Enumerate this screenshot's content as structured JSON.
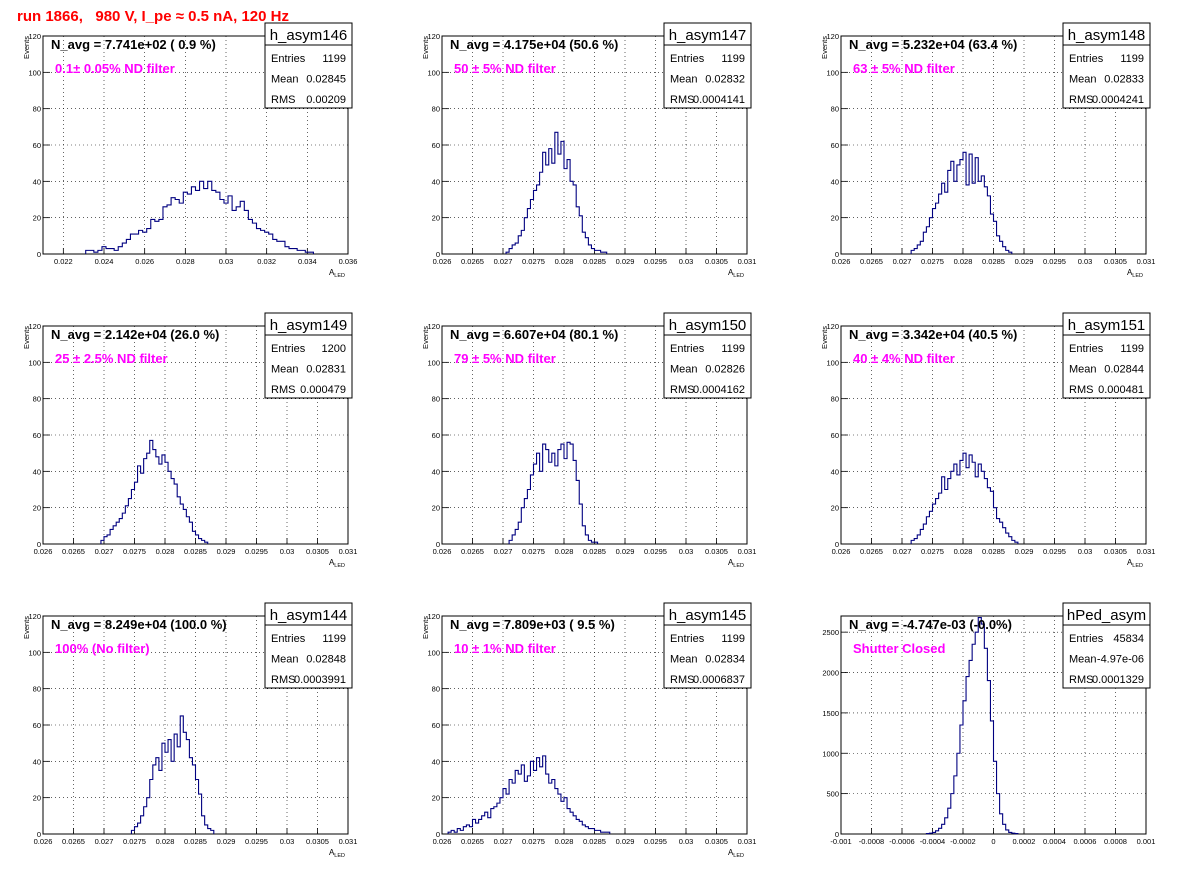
{
  "page": {
    "run_title": "run 1866,   980 V, I_pe ≈ 0.5 nA, 120 Hz"
  },
  "colors": {
    "histogram_line": "#000080",
    "annotation": "#ff00ff",
    "title": "#ff0000",
    "frame": "#000000",
    "grid": "#000000"
  },
  "chart_data": [
    {
      "type": "histogram",
      "name": "h_asym146",
      "navg": "N_avg = 7.741e+02 ( 0.9 %)",
      "annotation": "0.1± 0.05% ND filter",
      "stats": {
        "Entries": "1199",
        "Mean": "0.02845",
        "RMS": "0.00209"
      },
      "xlabel": "A_LED",
      "ylabel": "Events",
      "xlim": [
        0.021,
        0.036
      ],
      "ylim": [
        0,
        120
      ],
      "xticks": [
        {
          "v": 0.022,
          "l": "0.022"
        },
        {
          "v": 0.024,
          "l": "0.024"
        },
        {
          "v": 0.026,
          "l": "0.026"
        },
        {
          "v": 0.028,
          "l": "0.028"
        },
        {
          "v": 0.03,
          "l": "0.03"
        },
        {
          "v": 0.032,
          "l": "0.032"
        },
        {
          "v": 0.034,
          "l": "0.034"
        },
        {
          "v": 0.036,
          "l": "0.036"
        }
      ],
      "yticks": [
        0,
        20,
        40,
        60,
        80,
        100,
        120
      ],
      "bin_start": 0.0231,
      "bin_width": 0.0002,
      "counts": [
        2,
        2,
        1,
        2,
        4,
        3,
        3,
        2,
        4,
        6,
        8,
        11,
        11,
        13,
        12,
        14,
        19,
        18,
        19,
        26,
        27,
        31,
        30,
        28,
        34,
        33,
        37,
        35,
        40,
        36,
        40,
        35,
        34,
        30,
        28,
        32,
        24,
        26,
        29,
        24,
        19,
        17,
        14,
        13,
        12,
        11,
        8,
        7,
        7,
        4,
        3,
        3,
        2,
        2,
        1,
        1
      ]
    },
    {
      "type": "histogram",
      "name": "h_asym147",
      "navg": "N_avg = 4.175e+04 (50.6 %)",
      "annotation": "50 ± 5% ND filter",
      "stats": {
        "Entries": "1199",
        "Mean": "0.02832",
        "RMS": "0.0004141"
      },
      "xlabel": "A_LED",
      "ylabel": "Events",
      "xlim": [
        0.026,
        0.031
      ],
      "ylim": [
        0,
        120
      ],
      "xticks": [
        {
          "v": 0.026,
          "l": "0.026"
        },
        {
          "v": 0.0265,
          "l": "0.0265"
        },
        {
          "v": 0.027,
          "l": "0.027"
        },
        {
          "v": 0.0275,
          "l": "0.0275"
        },
        {
          "v": 0.028,
          "l": "0.028"
        },
        {
          "v": 0.0285,
          "l": "0.0285"
        },
        {
          "v": 0.029,
          "l": "0.029"
        },
        {
          "v": 0.0295,
          "l": "0.0295"
        },
        {
          "v": 0.03,
          "l": "0.03"
        },
        {
          "v": 0.0305,
          "l": "0.0305"
        },
        {
          "v": 0.031,
          "l": "0.031"
        }
      ],
      "yticks": [
        0,
        20,
        40,
        60,
        80,
        100,
        120
      ],
      "bin_start": 0.02705,
      "bin_width": 5e-05,
      "counts": [
        1,
        3,
        5,
        6,
        10,
        13,
        20,
        25,
        30,
        35,
        38,
        45,
        56,
        49,
        58,
        50,
        67,
        55,
        62,
        47,
        52,
        40,
        38,
        26,
        21,
        12,
        9,
        5,
        3,
        2,
        2,
        1,
        1
      ]
    },
    {
      "type": "histogram",
      "name": "h_asym148",
      "navg": "N_avg = 5.232e+04 (63.4 %)",
      "annotation": "63 ± 5% ND filter",
      "stats": {
        "Entries": "1199",
        "Mean": "0.02833",
        "RMS": "0.0004241"
      },
      "xlabel": "A_LED",
      "ylabel": "Events",
      "xlim": [
        0.026,
        0.031
      ],
      "ylim": [
        0,
        120
      ],
      "xticks": [
        {
          "v": 0.026,
          "l": "0.026"
        },
        {
          "v": 0.0265,
          "l": "0.0265"
        },
        {
          "v": 0.027,
          "l": "0.027"
        },
        {
          "v": 0.0275,
          "l": "0.0275"
        },
        {
          "v": 0.028,
          "l": "0.028"
        },
        {
          "v": 0.0285,
          "l": "0.0285"
        },
        {
          "v": 0.029,
          "l": "0.029"
        },
        {
          "v": 0.0295,
          "l": "0.0295"
        },
        {
          "v": 0.03,
          "l": "0.03"
        },
        {
          "v": 0.0305,
          "l": "0.0305"
        },
        {
          "v": 0.031,
          "l": "0.031"
        }
      ],
      "yticks": [
        0,
        20,
        40,
        60,
        80,
        100,
        120
      ],
      "bin_start": 0.02715,
      "bin_width": 5e-05,
      "counts": [
        2,
        3,
        5,
        7,
        12,
        15,
        20,
        25,
        28,
        33,
        39,
        34,
        46,
        51,
        40,
        49,
        52,
        56,
        38,
        55,
        39,
        53,
        40,
        43,
        37,
        32,
        22,
        18,
        10,
        7,
        4,
        2,
        1
      ]
    },
    {
      "type": "histogram",
      "name": "h_asym149",
      "navg": "N_avg = 2.142e+04 (26.0 %)",
      "annotation": "25 ± 2.5% ND filter",
      "stats": {
        "Entries": "1200",
        "Mean": "0.02831",
        "RMS": "0.000479"
      },
      "xlabel": "A_LED",
      "ylabel": "Events",
      "xlim": [
        0.026,
        0.031
      ],
      "ylim": [
        0,
        120
      ],
      "xticks": [
        {
          "v": 0.026,
          "l": "0.026"
        },
        {
          "v": 0.0265,
          "l": "0.0265"
        },
        {
          "v": 0.027,
          "l": "0.027"
        },
        {
          "v": 0.0275,
          "l": "0.0275"
        },
        {
          "v": 0.028,
          "l": "0.028"
        },
        {
          "v": 0.0285,
          "l": "0.0285"
        },
        {
          "v": 0.029,
          "l": "0.029"
        },
        {
          "v": 0.0295,
          "l": "0.0295"
        },
        {
          "v": 0.03,
          "l": "0.03"
        },
        {
          "v": 0.0305,
          "l": "0.0305"
        },
        {
          "v": 0.031,
          "l": "0.031"
        }
      ],
      "yticks": [
        0,
        20,
        40,
        60,
        80,
        100,
        120
      ],
      "bin_start": 0.02695,
      "bin_width": 5e-05,
      "counts": [
        2,
        4,
        5,
        8,
        10,
        12,
        14,
        17,
        21,
        25,
        30,
        34,
        43,
        39,
        47,
        50,
        57,
        52,
        48,
        44,
        49,
        45,
        40,
        36,
        33,
        26,
        22,
        19,
        15,
        12,
        7,
        5,
        3,
        2,
        1
      ]
    },
    {
      "type": "histogram",
      "name": "h_asym150",
      "navg": "N_avg = 6.607e+04 (80.1 %)",
      "annotation": "79 ± 5% ND filter",
      "stats": {
        "Entries": "1199",
        "Mean": "0.02826",
        "RMS": "0.0004162"
      },
      "xlabel": "A_LED",
      "ylabel": "Events",
      "xlim": [
        0.026,
        0.031
      ],
      "ylim": [
        0,
        120
      ],
      "xticks": [
        {
          "v": 0.026,
          "l": "0.026"
        },
        {
          "v": 0.0265,
          "l": "0.0265"
        },
        {
          "v": 0.027,
          "l": "0.027"
        },
        {
          "v": 0.0275,
          "l": "0.0275"
        },
        {
          "v": 0.028,
          "l": "0.028"
        },
        {
          "v": 0.0285,
          "l": "0.0285"
        },
        {
          "v": 0.029,
          "l": "0.029"
        },
        {
          "v": 0.0295,
          "l": "0.0295"
        },
        {
          "v": 0.03,
          "l": "0.03"
        },
        {
          "v": 0.0305,
          "l": "0.0305"
        },
        {
          "v": 0.031,
          "l": "0.031"
        }
      ],
      "yticks": [
        0,
        20,
        40,
        60,
        80,
        100,
        120
      ],
      "bin_start": 0.0271,
      "bin_width": 5e-05,
      "counts": [
        2,
        5,
        8,
        12,
        20,
        25,
        30,
        38,
        44,
        50,
        40,
        55,
        52,
        45,
        50,
        43,
        52,
        55,
        47,
        56,
        55,
        46,
        35,
        22,
        10,
        5,
        2,
        1,
        1
      ]
    },
    {
      "type": "histogram",
      "name": "h_asym151",
      "navg": "N_avg = 3.342e+04 (40.5 %)",
      "annotation": "40 ± 4% ND filter",
      "stats": {
        "Entries": "1199",
        "Mean": "0.02844",
        "RMS": "0.000481"
      },
      "xlabel": "A_LED",
      "ylabel": "Events",
      "xlim": [
        0.026,
        0.031
      ],
      "ylim": [
        0,
        120
      ],
      "xticks": [
        {
          "v": 0.026,
          "l": "0.026"
        },
        {
          "v": 0.0265,
          "l": "0.0265"
        },
        {
          "v": 0.027,
          "l": "0.027"
        },
        {
          "v": 0.0275,
          "l": "0.0275"
        },
        {
          "v": 0.028,
          "l": "0.028"
        },
        {
          "v": 0.0285,
          "l": "0.0285"
        },
        {
          "v": 0.029,
          "l": "0.029"
        },
        {
          "v": 0.0295,
          "l": "0.0295"
        },
        {
          "v": 0.03,
          "l": "0.03"
        },
        {
          "v": 0.0305,
          "l": "0.0305"
        },
        {
          "v": 0.031,
          "l": "0.031"
        }
      ],
      "yticks": [
        0,
        20,
        40,
        60,
        80,
        100,
        120
      ],
      "bin_start": 0.02715,
      "bin_width": 5e-05,
      "counts": [
        2,
        3,
        5,
        8,
        11,
        15,
        18,
        22,
        25,
        28,
        37,
        30,
        36,
        40,
        44,
        38,
        46,
        50,
        42,
        49,
        45,
        37,
        44,
        40,
        36,
        31,
        29,
        20,
        14,
        12,
        9,
        6,
        4,
        2,
        1
      ]
    },
    {
      "type": "histogram",
      "name": "h_asym144",
      "navg": "N_avg = 8.249e+04 (100.0 %)",
      "annotation": "100% (No filter)",
      "stats": {
        "Entries": "1199",
        "Mean": "0.02848",
        "RMS": "0.0003991"
      },
      "xlabel": "A_LED",
      "ylabel": "Events",
      "xlim": [
        0.026,
        0.031
      ],
      "ylim": [
        0,
        120
      ],
      "xticks": [
        {
          "v": 0.026,
          "l": "0.026"
        },
        {
          "v": 0.0265,
          "l": "0.0265"
        },
        {
          "v": 0.027,
          "l": "0.027"
        },
        {
          "v": 0.0275,
          "l": "0.0275"
        },
        {
          "v": 0.028,
          "l": "0.028"
        },
        {
          "v": 0.0285,
          "l": "0.0285"
        },
        {
          "v": 0.029,
          "l": "0.029"
        },
        {
          "v": 0.0295,
          "l": "0.0295"
        },
        {
          "v": 0.03,
          "l": "0.03"
        },
        {
          "v": 0.0305,
          "l": "0.0305"
        },
        {
          "v": 0.031,
          "l": "0.031"
        }
      ],
      "yticks": [
        0,
        20,
        40,
        60,
        80,
        100,
        120
      ],
      "bin_start": 0.02745,
      "bin_width": 5e-05,
      "counts": [
        2,
        4,
        6,
        10,
        15,
        20,
        30,
        38,
        42,
        35,
        50,
        45,
        52,
        40,
        55,
        48,
        65,
        56,
        52,
        42,
        38,
        30,
        22,
        10,
        5,
        3,
        2
      ]
    },
    {
      "type": "histogram",
      "name": "h_asym145",
      "navg": "N_avg = 7.809e+03 ( 9.5 %)",
      "annotation": "10 ± 1% ND filter",
      "stats": {
        "Entries": "1199",
        "Mean": "0.02834",
        "RMS": "0.0006837"
      },
      "xlabel": "A_LED",
      "ylabel": "Events",
      "xlim": [
        0.026,
        0.031
      ],
      "ylim": [
        0,
        120
      ],
      "xticks": [
        {
          "v": 0.026,
          "l": "0.026"
        },
        {
          "v": 0.0265,
          "l": "0.0265"
        },
        {
          "v": 0.027,
          "l": "0.027"
        },
        {
          "v": 0.0275,
          "l": "0.0275"
        },
        {
          "v": 0.028,
          "l": "0.028"
        },
        {
          "v": 0.0285,
          "l": "0.0285"
        },
        {
          "v": 0.029,
          "l": "0.029"
        },
        {
          "v": 0.0295,
          "l": "0.0295"
        },
        {
          "v": 0.03,
          "l": "0.03"
        },
        {
          "v": 0.0305,
          "l": "0.0305"
        },
        {
          "v": 0.031,
          "l": "0.031"
        }
      ],
      "yticks": [
        0,
        20,
        40,
        60,
        80,
        100,
        120
      ],
      "bin_start": 0.0261,
      "bin_width": 5e-05,
      "counts": [
        1,
        2,
        1,
        3,
        2,
        4,
        5,
        4,
        8,
        6,
        8,
        10,
        12,
        9,
        14,
        15,
        17,
        20,
        25,
        22,
        30,
        28,
        35,
        33,
        38,
        29,
        32,
        40,
        35,
        42,
        37,
        43,
        33,
        28,
        30,
        25,
        22,
        18,
        20,
        14,
        12,
        10,
        8,
        7,
        5,
        4,
        3,
        3,
        2,
        2,
        1,
        1,
        1
      ]
    },
    {
      "type": "histogram",
      "name": "hPed_asym",
      "navg": "N_avg = -4.747e-03 (-0.0%)",
      "annotation": "Shutter Closed",
      "stats": {
        "Entries": "45834",
        "Mean": "-4.97e-06",
        "RMS": "0.0001329"
      },
      "xlabel": "",
      "ylabel": "",
      "xlim": [
        -0.001,
        0.001
      ],
      "ylim": [
        0,
        2700
      ],
      "xticks": [
        {
          "v": -0.001,
          "l": "-0.001"
        },
        {
          "v": -0.0008,
          "l": "-0.0008"
        },
        {
          "v": -0.0006,
          "l": "-0.0006"
        },
        {
          "v": -0.0004,
          "l": "-0.0004"
        },
        {
          "v": -0.0002,
          "l": "-0.0002"
        },
        {
          "v": 0,
          "l": "0"
        },
        {
          "v": 0.0002,
          "l": "0.0002"
        },
        {
          "v": 0.0004,
          "l": "0.0004"
        },
        {
          "v": 0.0006,
          "l": "0.0006"
        },
        {
          "v": 0.0008,
          "l": "0.0008"
        },
        {
          "v": 0.001,
          "l": "0.001"
        }
      ],
      "yticks": [
        0,
        500,
        1000,
        1500,
        2000,
        2500
      ],
      "bin_start": -0.00044,
      "bin_width": 2e-05,
      "counts": [
        5,
        10,
        20,
        40,
        70,
        120,
        200,
        320,
        500,
        720,
        1000,
        1350,
        1650,
        1950,
        2150,
        2350,
        2500,
        2680,
        2600,
        2300,
        1900,
        1400,
        900,
        500,
        250,
        120,
        50,
        20,
        10,
        5
      ]
    }
  ]
}
